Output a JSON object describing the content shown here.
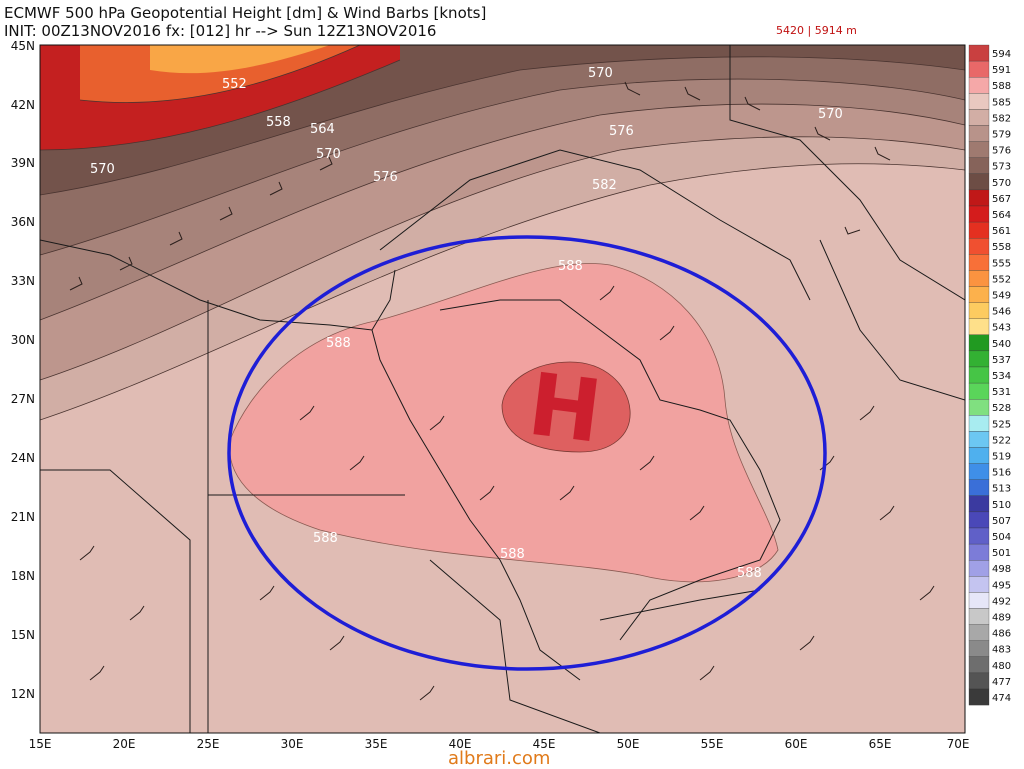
{
  "header": {
    "title": "ECMWF 500 hPa Geopotential Height [dm] & Wind Barbs [knots]",
    "init_line": "INIT: 00Z13NOV2016 fx: [012] hr --> Sun 12Z13NOV2016",
    "contour_note": "5420 | 5914 m"
  },
  "axes": {
    "lat_labels": [
      "45N",
      "42N",
      "39N",
      "36N",
      "33N",
      "30N",
      "27N",
      "24N",
      "21N",
      "18N",
      "15N",
      "12N"
    ],
    "lon_labels": [
      "15E",
      "20E",
      "25E",
      "30E",
      "35E",
      "40E",
      "45E",
      "50E",
      "55E",
      "60E",
      "65E",
      "70E"
    ]
  },
  "contour_labels": [
    "552",
    "558",
    "564",
    "570",
    "570",
    "570",
    "576",
    "576",
    "582",
    "588",
    "588",
    "588",
    "588",
    "588"
  ],
  "high_marker": "H",
  "colorbar": {
    "levels": [
      "594",
      "591",
      "588",
      "585",
      "582",
      "579",
      "576",
      "573",
      "570",
      "567",
      "564",
      "561",
      "558",
      "555",
      "552",
      "549",
      "546",
      "543",
      "540",
      "537",
      "534",
      "531",
      "528",
      "525",
      "522",
      "519",
      "516",
      "513",
      "510",
      "507",
      "504",
      "501",
      "498",
      "495",
      "492",
      "489",
      "486",
      "483",
      "480",
      "477",
      "474"
    ],
    "colors": [
      "#c94040",
      "#e86868",
      "#f5a8a8",
      "#e9c8c0",
      "#d2aea5",
      "#b8938a",
      "#9f7a70",
      "#86635a",
      "#6d4d45",
      "#c01818",
      "#d41c1c",
      "#e43020",
      "#f05030",
      "#f87038",
      "#fb9340",
      "#fcb14c",
      "#fdcb60",
      "#fee08a",
      "#219a21",
      "#33b133",
      "#46c546",
      "#5ad55a",
      "#80e080",
      "#a8ecf0",
      "#6cc7f2",
      "#4fb0ee",
      "#3f8fe8",
      "#3a6fd8",
      "#3b3aa0",
      "#4a48b8",
      "#6060c8",
      "#7c7cd8",
      "#a0a0e6",
      "#c4c4f0",
      "#e6e6f8",
      "#c8c8c8",
      "#a8a8a8",
      "#8a8a8a",
      "#6e6e6e",
      "#545454",
      "#3a3a3a"
    ]
  },
  "watermark": "albrari.com"
}
